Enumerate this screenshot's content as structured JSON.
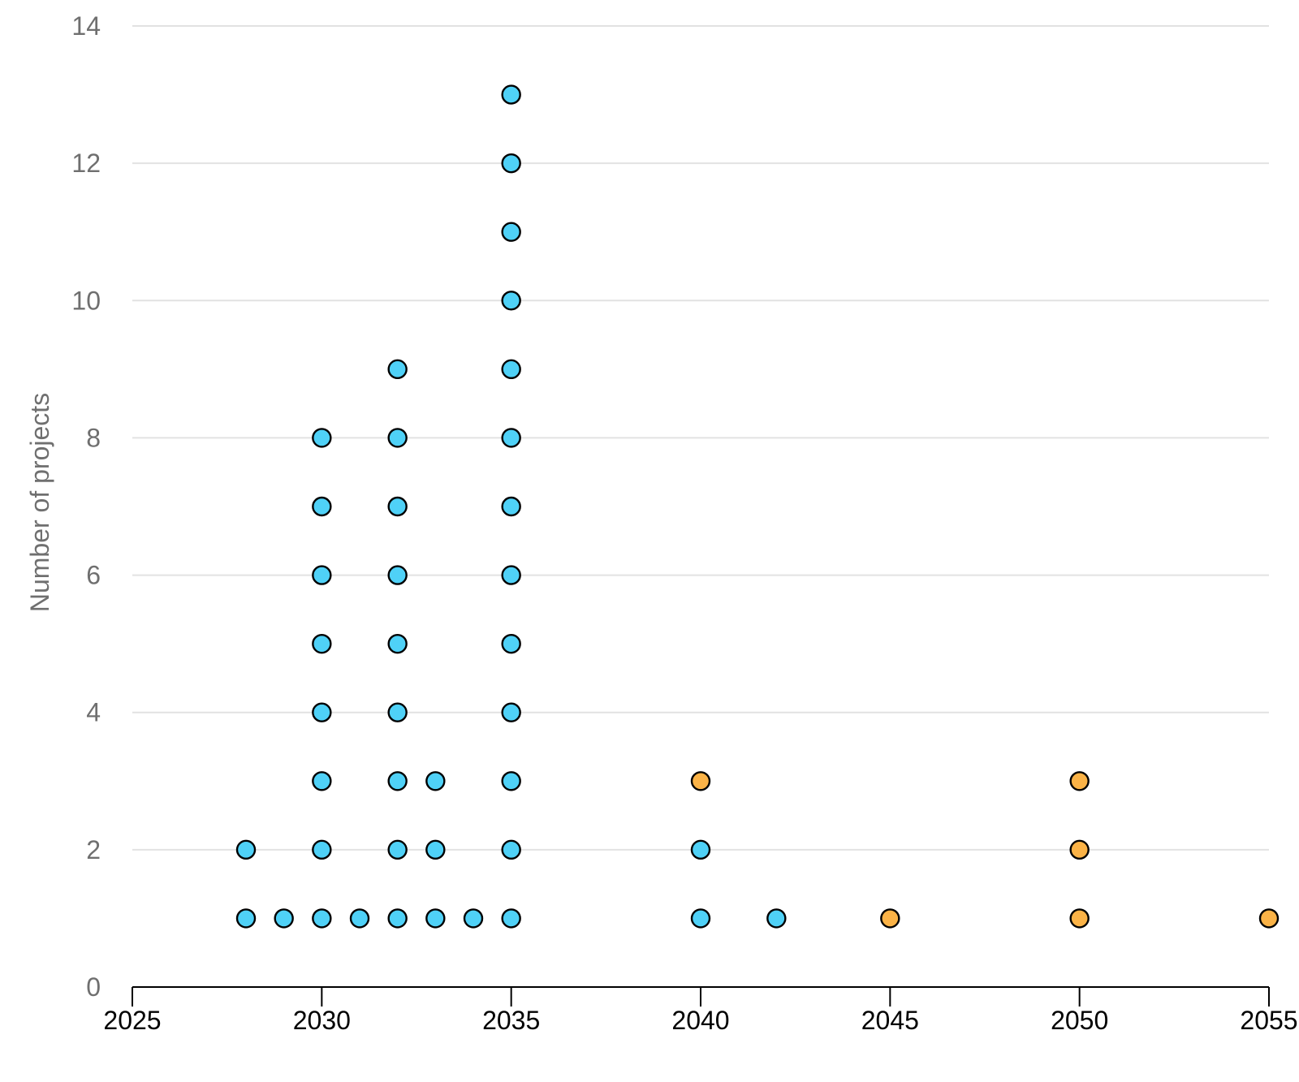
{
  "chart_data": {
    "type": "scatter",
    "title": "",
    "xlabel": "",
    "ylabel": "Number of projects",
    "xlim": [
      2025,
      2055
    ],
    "ylim": [
      0,
      14
    ],
    "x_ticks": [
      "2025",
      "2030",
      "2035",
      "2040",
      "2045",
      "2050",
      "2055"
    ],
    "y_ticks": [
      "0",
      "2",
      "4",
      "6",
      "8",
      "10",
      "12",
      "14"
    ],
    "grid": true,
    "legend": "none",
    "series": [
      {
        "color": "#4fd1f7",
        "points": [
          [
            2028,
            1
          ],
          [
            2028,
            2
          ],
          [
            2029,
            1
          ],
          [
            2030,
            1
          ],
          [
            2030,
            2
          ],
          [
            2030,
            3
          ],
          [
            2030,
            4
          ],
          [
            2030,
            5
          ],
          [
            2030,
            6
          ],
          [
            2030,
            7
          ],
          [
            2030,
            8
          ],
          [
            2031,
            1
          ],
          [
            2032,
            1
          ],
          [
            2032,
            2
          ],
          [
            2032,
            3
          ],
          [
            2032,
            4
          ],
          [
            2032,
            5
          ],
          [
            2032,
            6
          ],
          [
            2032,
            7
          ],
          [
            2032,
            8
          ],
          [
            2032,
            9
          ],
          [
            2033,
            1
          ],
          [
            2033,
            2
          ],
          [
            2033,
            3
          ],
          [
            2034,
            1
          ],
          [
            2035,
            1
          ],
          [
            2035,
            2
          ],
          [
            2035,
            3
          ],
          [
            2035,
            4
          ],
          [
            2035,
            5
          ],
          [
            2035,
            6
          ],
          [
            2035,
            7
          ],
          [
            2035,
            8
          ],
          [
            2035,
            9
          ],
          [
            2035,
            10
          ],
          [
            2035,
            11
          ],
          [
            2035,
            12
          ],
          [
            2035,
            13
          ],
          [
            2040,
            1
          ],
          [
            2040,
            2
          ],
          [
            2042,
            1
          ]
        ]
      },
      {
        "color": "#fbb347",
        "points": [
          [
            2040,
            3
          ],
          [
            2045,
            1
          ],
          [
            2050,
            1
          ],
          [
            2050,
            2
          ],
          [
            2050,
            3
          ],
          [
            2055,
            1
          ]
        ]
      }
    ]
  }
}
